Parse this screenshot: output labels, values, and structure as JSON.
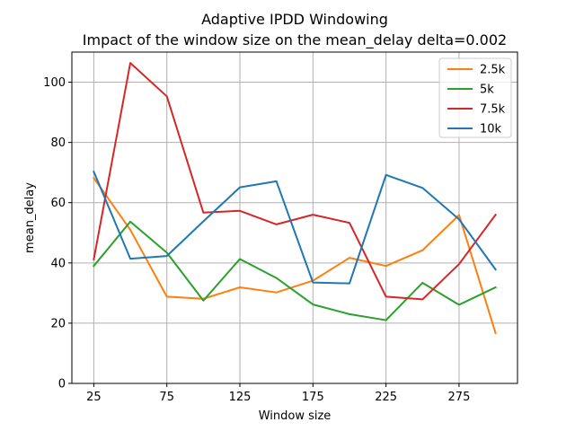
{
  "chart_data": {
    "type": "line",
    "title": "Adaptive IPDD Windowing",
    "subtitle": "Impact of the window size on the mean_delay delta=0.002",
    "xlabel": "Window size",
    "ylabel": "mean_delay",
    "x": [
      25,
      50,
      75,
      100,
      125,
      150,
      175,
      200,
      225,
      250,
      275,
      300
    ],
    "xticks": [
      25,
      75,
      125,
      175,
      225,
      275
    ],
    "xlim": [
      10,
      315
    ],
    "yticks": [
      0,
      20,
      40,
      60,
      80,
      100
    ],
    "ylim": [
      0,
      110
    ],
    "grid": true,
    "legend_position": "top-right",
    "series": [
      {
        "name": "2.5k",
        "color": "#ff7f0e",
        "values": [
          68.2,
          51.0,
          28.8,
          28.1,
          31.9,
          30.2,
          34.1,
          41.7,
          39.0,
          44.2,
          55.9,
          16.7
        ]
      },
      {
        "name": "5k",
        "color": "#2ca02c",
        "values": [
          39.0,
          53.7,
          43.4,
          27.5,
          41.3,
          35.0,
          26.2,
          23.0,
          21.0,
          33.4,
          26.1,
          31.9
        ]
      },
      {
        "name": "7.5k",
        "color": "#d62728",
        "values": [
          41.2,
          106.4,
          95.3,
          56.7,
          57.3,
          52.8,
          56.0,
          53.3,
          28.8,
          27.9,
          39.6,
          56.0
        ]
      },
      {
        "name": "10k",
        "color": "#1f77b4",
        "values": [
          70.3,
          41.4,
          42.3,
          53.8,
          65.1,
          67.1,
          33.5,
          33.2,
          69.2,
          64.9,
          54.5,
          37.8
        ]
      }
    ]
  }
}
